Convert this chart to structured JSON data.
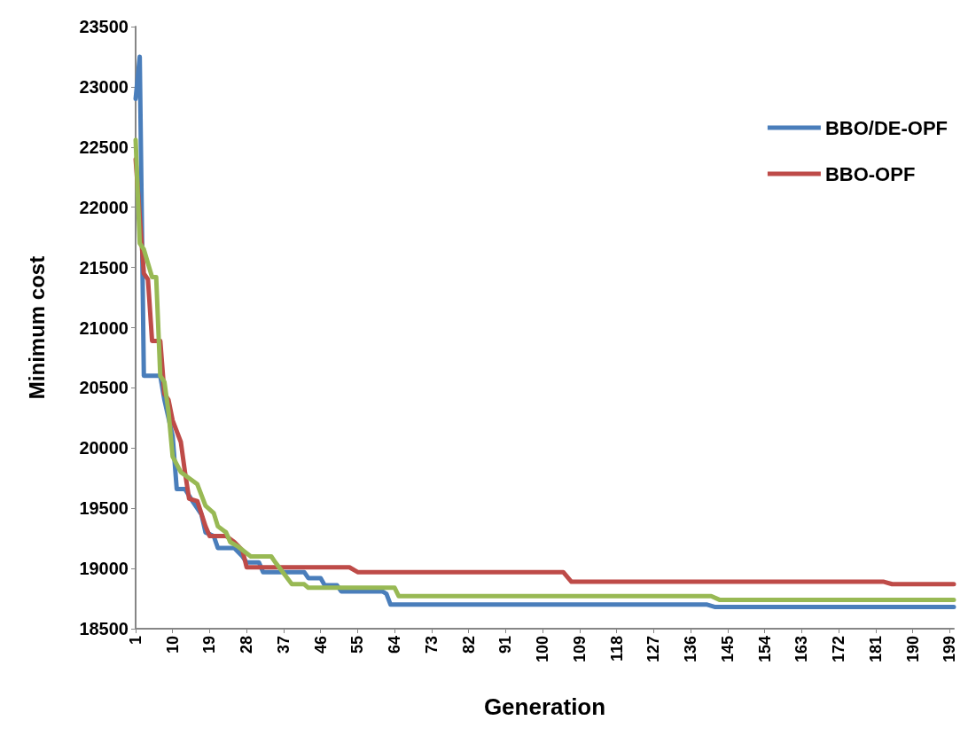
{
  "chart_data": {
    "type": "line",
    "xlabel": "Generation",
    "ylabel": "Minimum cost",
    "xlim": [
      1,
      200
    ],
    "xticks": [
      1,
      10,
      19,
      28,
      37,
      46,
      55,
      64,
      73,
      82,
      91,
      100,
      109,
      118,
      127,
      136,
      145,
      154,
      163,
      172,
      181,
      190,
      199
    ],
    "ylim": [
      18500,
      23500
    ],
    "yticks": [
      18500,
      19000,
      19500,
      20000,
      20500,
      21000,
      21500,
      22000,
      22500,
      23000,
      23500
    ],
    "grid": false,
    "legend": "right",
    "marker": "none",
    "line_style": "solid",
    "series": [
      {
        "name": "BBO/DE-OPF",
        "color": "#4a7ebb",
        "x": [
          1,
          2,
          3,
          7,
          8,
          10,
          11,
          13,
          15,
          17,
          18,
          20,
          21,
          25,
          27,
          28,
          31,
          32,
          42,
          43,
          46,
          47,
          50,
          51,
          61,
          62,
          63,
          140,
          142,
          200
        ],
        "values": [
          22900,
          23250,
          20600,
          20600,
          20400,
          20100,
          19660,
          19660,
          19550,
          19450,
          19300,
          19270,
          19170,
          19170,
          19100,
          19050,
          19050,
          18970,
          18970,
          18920,
          18920,
          18860,
          18860,
          18810,
          18810,
          18790,
          18700,
          18700,
          18680,
          18680
        ]
      },
      {
        "name": "BBO-OPF",
        "color": "#be4b48",
        "x": [
          1,
          3,
          4,
          5,
          7,
          8,
          9,
          10,
          12,
          13,
          14,
          16,
          18,
          19,
          23,
          25,
          27,
          28,
          53,
          55,
          105,
          107,
          183,
          185,
          200
        ],
        "values": [
          22400,
          21450,
          21400,
          20890,
          20890,
          20450,
          20400,
          20230,
          20050,
          19800,
          19580,
          19560,
          19350,
          19270,
          19270,
          19220,
          19150,
          19010,
          19010,
          18970,
          18970,
          18890,
          18890,
          18870,
          18870
        ]
      },
      {
        "color": "#98b954",
        "x": [
          1,
          2,
          3,
          5,
          6,
          7,
          8,
          9,
          10,
          12,
          14,
          16,
          18,
          20,
          21,
          23,
          24,
          26,
          29,
          34,
          35,
          37,
          39,
          42,
          43,
          64,
          65,
          141,
          143,
          200
        ],
        "values": [
          22560,
          21700,
          21650,
          21420,
          21420,
          20600,
          20550,
          20300,
          19930,
          19800,
          19750,
          19700,
          19520,
          19460,
          19350,
          19300,
          19220,
          19180,
          19100,
          19100,
          19050,
          18960,
          18870,
          18870,
          18840,
          18840,
          18770,
          18770,
          18740,
          18740
        ]
      }
    ]
  }
}
